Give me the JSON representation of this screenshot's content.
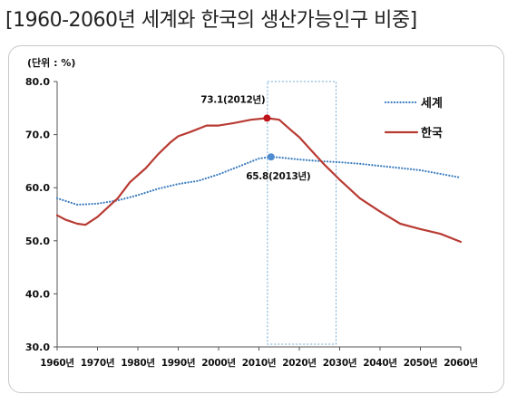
{
  "chart_data": {
    "type": "line",
    "title": "[1960-2060년 세계와 한국의 생산가능인구 비중]",
    "unit_label": "(단위 : %)",
    "x_tick_labels": [
      "1960년",
      "1970년",
      "1980년",
      "1990년",
      "2000년",
      "2010년",
      "2020년",
      "2030년",
      "2040년",
      "2050년",
      "2060년"
    ],
    "y_tick_labels": [
      "30.0",
      "40.0",
      "50.0",
      "60.0",
      "70.0",
      "80.0"
    ],
    "xlim": [
      1960,
      2060
    ],
    "ylim": [
      30,
      80
    ],
    "grid": false,
    "legend_position": "top-right",
    "series": [
      {
        "name": "세계",
        "style": "dotted",
        "color": "#3f7fc0",
        "points": [
          [
            1960,
            58.0
          ],
          [
            1965,
            56.8
          ],
          [
            1970,
            57.0
          ],
          [
            1975,
            57.6
          ],
          [
            1980,
            58.6
          ],
          [
            1985,
            59.8
          ],
          [
            1990,
            60.7
          ],
          [
            1995,
            61.3
          ],
          [
            2000,
            62.5
          ],
          [
            2005,
            64.0
          ],
          [
            2010,
            65.5
          ],
          [
            2013,
            65.8
          ],
          [
            2015,
            65.7
          ],
          [
            2020,
            65.3
          ],
          [
            2025,
            65.0
          ],
          [
            2030,
            64.8
          ],
          [
            2035,
            64.5
          ],
          [
            2040,
            64.1
          ],
          [
            2045,
            63.7
          ],
          [
            2050,
            63.3
          ],
          [
            2055,
            62.6
          ],
          [
            2060,
            61.9
          ]
        ]
      },
      {
        "name": "한국",
        "style": "solid",
        "color": "#b83b33",
        "points": [
          [
            1960,
            54.8
          ],
          [
            1962,
            54.0
          ],
          [
            1965,
            53.2
          ],
          [
            1967,
            53.0
          ],
          [
            1970,
            54.5
          ],
          [
            1975,
            58.0
          ],
          [
            1978,
            61.0
          ],
          [
            1982,
            63.7
          ],
          [
            1985,
            66.3
          ],
          [
            1988,
            68.5
          ],
          [
            1990,
            69.7
          ],
          [
            1993,
            70.5
          ],
          [
            1997,
            71.7
          ],
          [
            2000,
            71.7
          ],
          [
            2004,
            72.2
          ],
          [
            2008,
            72.8
          ],
          [
            2012,
            73.1
          ],
          [
            2015,
            72.8
          ],
          [
            2018,
            70.8
          ],
          [
            2020,
            69.5
          ],
          [
            2023,
            67.0
          ],
          [
            2026,
            64.5
          ],
          [
            2030,
            61.5
          ],
          [
            2035,
            58.0
          ],
          [
            2040,
            55.5
          ],
          [
            2045,
            53.2
          ],
          [
            2050,
            52.2
          ],
          [
            2055,
            51.3
          ],
          [
            2060,
            49.8
          ]
        ]
      }
    ],
    "annotations": [
      {
        "series": "한국",
        "x": 2012,
        "y": 73.1,
        "label": "73.1(2012년)",
        "marker_color": "#c0141c"
      },
      {
        "series": "세계",
        "x": 2013,
        "y": 65.8,
        "label": "65.8(2013년)",
        "marker_color": "#4e8bd0"
      }
    ],
    "highlight_x_range": [
      2012,
      2029
    ],
    "highlight_color": "#6fa8d2"
  }
}
